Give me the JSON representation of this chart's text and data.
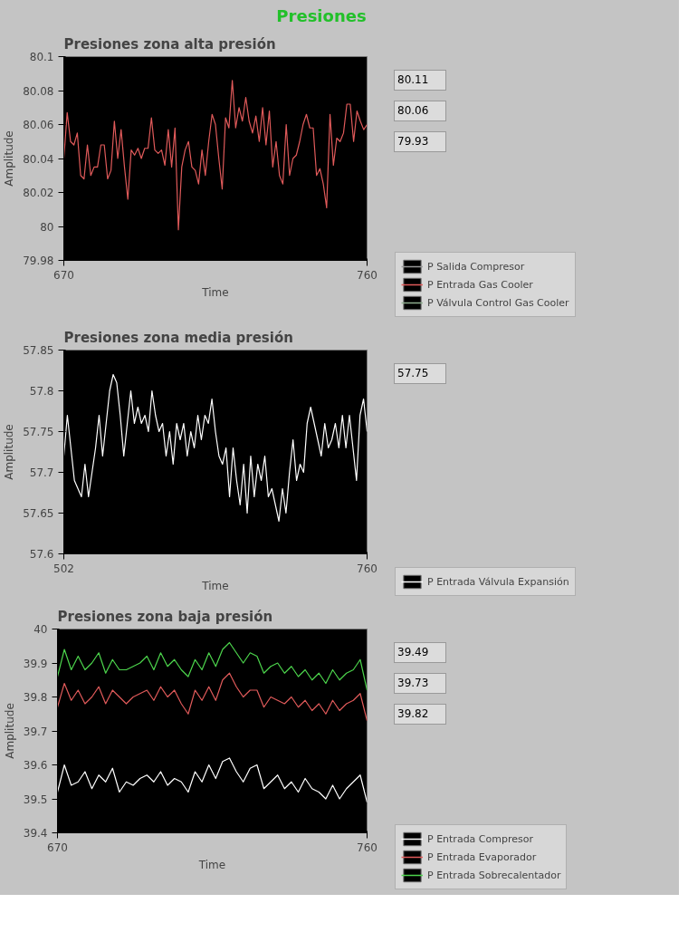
{
  "chart_data": [
    {
      "type": "line",
      "title": "Presiones",
      "subtitle": "Presiones zona alta presión",
      "xlabel": "Time",
      "ylabel": "Amplitude",
      "xlim": [
        670,
        760
      ],
      "xticks": [
        670,
        760
      ],
      "ylim": [
        79.98,
        80.1
      ],
      "yticks": [
        79.98,
        80,
        80.02,
        80.04,
        80.06,
        80.08,
        80.1
      ],
      "legend": "bottom right",
      "annotations": [
        "80.11",
        "80.06",
        "79.93"
      ],
      "x": [
        670,
        671,
        672,
        673,
        674,
        675,
        676,
        677,
        678,
        679,
        680,
        681,
        682,
        683,
        684,
        685,
        686,
        687,
        688,
        689,
        690,
        691,
        692,
        693,
        694,
        695,
        696,
        697,
        698,
        699,
        700,
        701,
        702,
        703,
        704,
        705,
        706,
        707,
        708,
        709,
        710,
        711,
        712,
        713,
        714,
        715,
        716,
        717,
        718,
        719,
        720,
        721,
        722,
        723,
        724,
        725,
        726,
        727,
        728,
        729,
        730,
        731,
        732,
        733,
        734,
        735,
        736,
        737,
        738,
        739,
        740,
        741,
        742,
        743,
        744,
        745,
        746,
        747,
        748,
        749,
        750,
        751,
        752,
        753,
        754,
        755,
        756,
        757,
        758,
        759,
        760
      ],
      "series": [
        {
          "name": "P Salida Compresor",
          "color": "#9a9a9a",
          "values": [
            null,
            null,
            null,
            null,
            null,
            null,
            null,
            null,
            null,
            null,
            null,
            null,
            null,
            null,
            null,
            null,
            null,
            null,
            null,
            null,
            null,
            null,
            null,
            null,
            null,
            null,
            null,
            null,
            null,
            null,
            null,
            null,
            null,
            null,
            null,
            null,
            null,
            null,
            null,
            null,
            null,
            null,
            null,
            null,
            null,
            null,
            null,
            null,
            null,
            null,
            null,
            null,
            null,
            null,
            null,
            null,
            null,
            null,
            null,
            null,
            null,
            null,
            null,
            null,
            null,
            null,
            null,
            null,
            null,
            null,
            null,
            null,
            null,
            null,
            null,
            null,
            null,
            null,
            null,
            null,
            null,
            null,
            null,
            null,
            null,
            null,
            null,
            null,
            null,
            null,
            null
          ]
        },
        {
          "name": "P Entrada Gas Cooler",
          "color": "#e05a5a",
          "values": [
            80.04,
            80.067,
            80.05,
            80.048,
            80.055,
            80.03,
            80.028,
            80.048,
            80.03,
            80.035,
            80.035,
            80.048,
            80.048,
            80.028,
            80.033,
            80.062,
            80.04,
            80.057,
            80.035,
            80.016,
            80.045,
            80.042,
            80.046,
            80.04,
            80.046,
            80.046,
            80.064,
            80.045,
            80.043,
            80.045,
            80.036,
            80.057,
            80.035,
            80.058,
            79.998,
            80.035,
            80.045,
            80.05,
            80.035,
            80.033,
            80.025,
            80.045,
            80.03,
            80.05,
            80.066,
            80.06,
            80.04,
            80.022,
            80.064,
            80.058,
            80.086,
            80.058,
            80.07,
            80.062,
            80.076,
            80.062,
            80.055,
            80.065,
            80.05,
            80.07,
            80.048,
            80.068,
            80.035,
            80.05,
            80.03,
            80.025,
            80.06,
            80.03,
            80.04,
            80.042,
            80.05,
            80.06,
            80.066,
            80.058,
            80.058,
            80.03,
            80.034,
            80.025,
            80.011,
            80.066,
            80.036,
            80.052,
            80.05,
            80.055,
            80.072,
            80.072,
            80.05,
            80.068,
            80.062,
            80.057,
            80.06
          ]
        },
        {
          "name": "P Válvula Control Gas Cooler",
          "color": "#8fae8f",
          "values": [
            null,
            null,
            null,
            null,
            null,
            null,
            null,
            null,
            null,
            null,
            null,
            null,
            null,
            null,
            null,
            null,
            null,
            null,
            null,
            null,
            null,
            null,
            null,
            null,
            null,
            null,
            null,
            null,
            null,
            null,
            null,
            null,
            null,
            null,
            null,
            null,
            null,
            null,
            null,
            null,
            null,
            null,
            null,
            null,
            null,
            null,
            null,
            null,
            null,
            null,
            null,
            null,
            null,
            null,
            null,
            null,
            null,
            null,
            null,
            null,
            null,
            null,
            null,
            null,
            null,
            null,
            null,
            null,
            null,
            null,
            null,
            null,
            null,
            null,
            null,
            null,
            null,
            null,
            null,
            null,
            null,
            null,
            null,
            null,
            null,
            null,
            null,
            null,
            null,
            null,
            null
          ]
        }
      ]
    },
    {
      "type": "line",
      "title": "Presiones zona media presión",
      "xlabel": "Time",
      "ylabel": "Amplitude",
      "xlim": [
        502,
        760
      ],
      "xticks": [
        502,
        760
      ],
      "ylim": [
        57.6,
        57.85
      ],
      "yticks": [
        57.6,
        57.65,
        57.7,
        57.75,
        57.8,
        57.85
      ],
      "legend": "bottom right",
      "annotations": [
        "57.75"
      ],
      "x": [
        502,
        505,
        508,
        511,
        514,
        517,
        520,
        523,
        526,
        529,
        532,
        535,
        538,
        541,
        544,
        547,
        550,
        553,
        556,
        559,
        562,
        565,
        568,
        571,
        574,
        577,
        580,
        583,
        586,
        589,
        592,
        595,
        598,
        601,
        604,
        607,
        610,
        613,
        616,
        619,
        622,
        625,
        628,
        631,
        634,
        637,
        640,
        643,
        646,
        649,
        652,
        655,
        658,
        661,
        664,
        667,
        670,
        673,
        676,
        679,
        682,
        685,
        688,
        691,
        694,
        697,
        700,
        703,
        706,
        709,
        712,
        715,
        718,
        721,
        724,
        727,
        730,
        733,
        736,
        739,
        742,
        745,
        748,
        751,
        754,
        757,
        760
      ],
      "series": [
        {
          "name": "P Entrada Válvula Expansión",
          "color": "#ffffff",
          "values": [
            57.72,
            57.77,
            57.73,
            57.69,
            57.68,
            57.67,
            57.71,
            57.67,
            57.7,
            57.73,
            57.77,
            57.72,
            57.76,
            57.8,
            57.82,
            57.81,
            57.77,
            57.72,
            57.76,
            57.8,
            57.76,
            57.78,
            57.76,
            57.77,
            57.75,
            57.8,
            57.77,
            57.75,
            57.76,
            57.72,
            57.75,
            57.71,
            57.76,
            57.74,
            57.76,
            57.72,
            57.75,
            57.73,
            57.77,
            57.74,
            57.77,
            57.76,
            57.79,
            57.75,
            57.72,
            57.71,
            57.73,
            57.67,
            57.73,
            57.69,
            57.66,
            57.71,
            57.65,
            57.72,
            57.67,
            57.71,
            57.69,
            57.72,
            57.67,
            57.68,
            57.66,
            57.64,
            57.68,
            57.65,
            57.7,
            57.74,
            57.69,
            57.71,
            57.7,
            57.76,
            57.78,
            57.76,
            57.74,
            57.72,
            57.76,
            57.73,
            57.74,
            57.76,
            57.73,
            57.77,
            57.73,
            57.77,
            57.73,
            57.69,
            57.77,
            57.79,
            57.75
          ]
        }
      ]
    },
    {
      "type": "line",
      "title": "Presiones zona baja presión",
      "xlabel": "Time",
      "ylabel": "Amplitude",
      "xlim": [
        670,
        760
      ],
      "xticks": [
        670,
        760
      ],
      "ylim": [
        39.4,
        40
      ],
      "yticks": [
        39.4,
        39.5,
        39.6,
        39.7,
        39.8,
        39.9,
        40
      ],
      "legend": "bottom right",
      "annotations": [
        "39.49",
        "39.73",
        "39.82"
      ],
      "x": [
        670,
        672,
        674,
        676,
        678,
        680,
        682,
        684,
        686,
        688,
        690,
        692,
        694,
        696,
        698,
        700,
        702,
        704,
        706,
        708,
        710,
        712,
        714,
        716,
        718,
        720,
        722,
        724,
        726,
        728,
        730,
        732,
        734,
        736,
        738,
        740,
        742,
        744,
        746,
        748,
        750,
        752,
        754,
        756,
        758,
        760
      ],
      "series": [
        {
          "name": "P Entrada Compresor",
          "color": "#ffffff",
          "values": [
            39.52,
            39.6,
            39.54,
            39.55,
            39.58,
            39.53,
            39.57,
            39.55,
            39.59,
            39.52,
            39.55,
            39.54,
            39.56,
            39.57,
            39.55,
            39.58,
            39.54,
            39.56,
            39.55,
            39.52,
            39.58,
            39.55,
            39.6,
            39.56,
            39.61,
            39.62,
            39.58,
            39.55,
            39.59,
            39.6,
            39.53,
            39.55,
            39.57,
            39.53,
            39.55,
            39.52,
            39.56,
            39.53,
            39.52,
            39.5,
            39.54,
            39.5,
            39.53,
            39.55,
            39.57,
            39.49
          ]
        },
        {
          "name": "P Entrada Evaporador",
          "color": "#e05a5a",
          "values": [
            39.77,
            39.84,
            39.79,
            39.82,
            39.78,
            39.8,
            39.83,
            39.78,
            39.82,
            39.8,
            39.78,
            39.8,
            39.81,
            39.82,
            39.79,
            39.83,
            39.8,
            39.82,
            39.78,
            39.75,
            39.82,
            39.79,
            39.83,
            39.79,
            39.85,
            39.87,
            39.83,
            39.8,
            39.82,
            39.82,
            39.77,
            39.8,
            39.79,
            39.78,
            39.8,
            39.77,
            39.79,
            39.76,
            39.78,
            39.75,
            39.79,
            39.76,
            39.78,
            39.79,
            39.81,
            39.73
          ]
        },
        {
          "name": "P Entrada Sobrecalentador",
          "color": "#4cd44c",
          "values": [
            39.86,
            39.94,
            39.88,
            39.92,
            39.88,
            39.9,
            39.93,
            39.87,
            39.91,
            39.88,
            39.88,
            39.89,
            39.9,
            39.92,
            39.88,
            39.93,
            39.89,
            39.91,
            39.88,
            39.86,
            39.91,
            39.88,
            39.93,
            39.89,
            39.94,
            39.96,
            39.93,
            39.9,
            39.93,
            39.92,
            39.87,
            39.89,
            39.9,
            39.87,
            39.89,
            39.86,
            39.88,
            39.85,
            39.87,
            39.84,
            39.88,
            39.85,
            39.87,
            39.88,
            39.91,
            39.82
          ]
        }
      ]
    }
  ]
}
